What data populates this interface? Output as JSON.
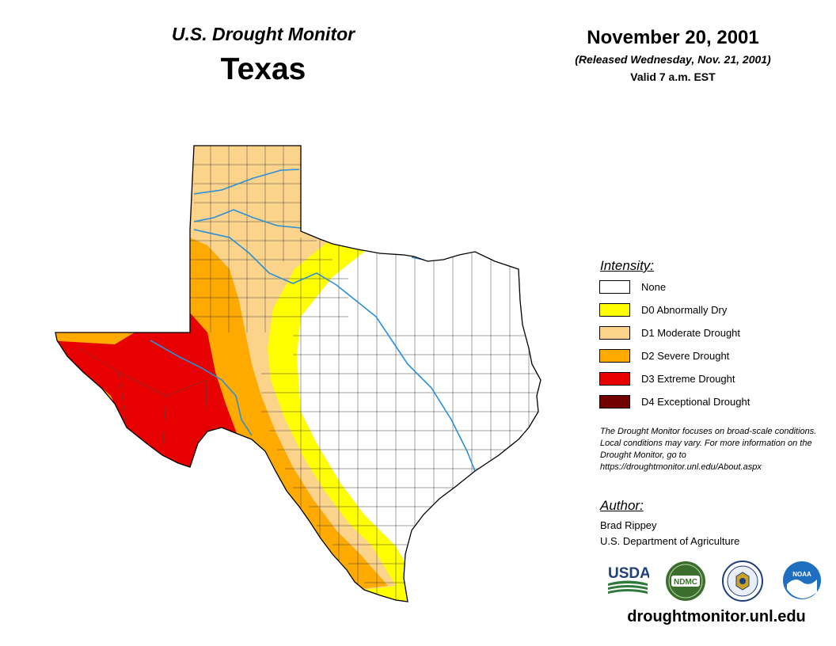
{
  "header": {
    "title": "U.S. Drought Monitor",
    "region": "Texas",
    "date": "November 20, 2001",
    "released": "(Released Wednesday, Nov. 21, 2001)",
    "valid": "Valid 7 a.m. EST"
  },
  "legend": {
    "title": "Intensity:",
    "items": [
      {
        "label": "None",
        "color": "#ffffff"
      },
      {
        "label": "D0 Abnormally Dry",
        "color": "#ffff00"
      },
      {
        "label": "D1 Moderate Drought",
        "color": "#fcd38a"
      },
      {
        "label": "D2 Severe Drought",
        "color": "#ffaa00"
      },
      {
        "label": "D3 Extreme Drought",
        "color": "#e60000"
      },
      {
        "label": "D4 Exceptional Drought",
        "color": "#730000"
      }
    ]
  },
  "note": "The Drought Monitor focuses on broad-scale conditions. Local conditions may vary. For more information on the Drought Monitor, go to https://droughtmonitor.unl.edu/About.aspx",
  "author": {
    "title": "Author:",
    "name": "Brad Rippey",
    "org": "U.S. Department of Agriculture"
  },
  "logos": {
    "usda": "USDA",
    "ndmc": "NDMC",
    "noaa": "NOAA"
  },
  "website": "droughtmonitor.unl.edu",
  "map": {
    "river_color": "#2a8fd8",
    "boundary_color": "#000000"
  }
}
